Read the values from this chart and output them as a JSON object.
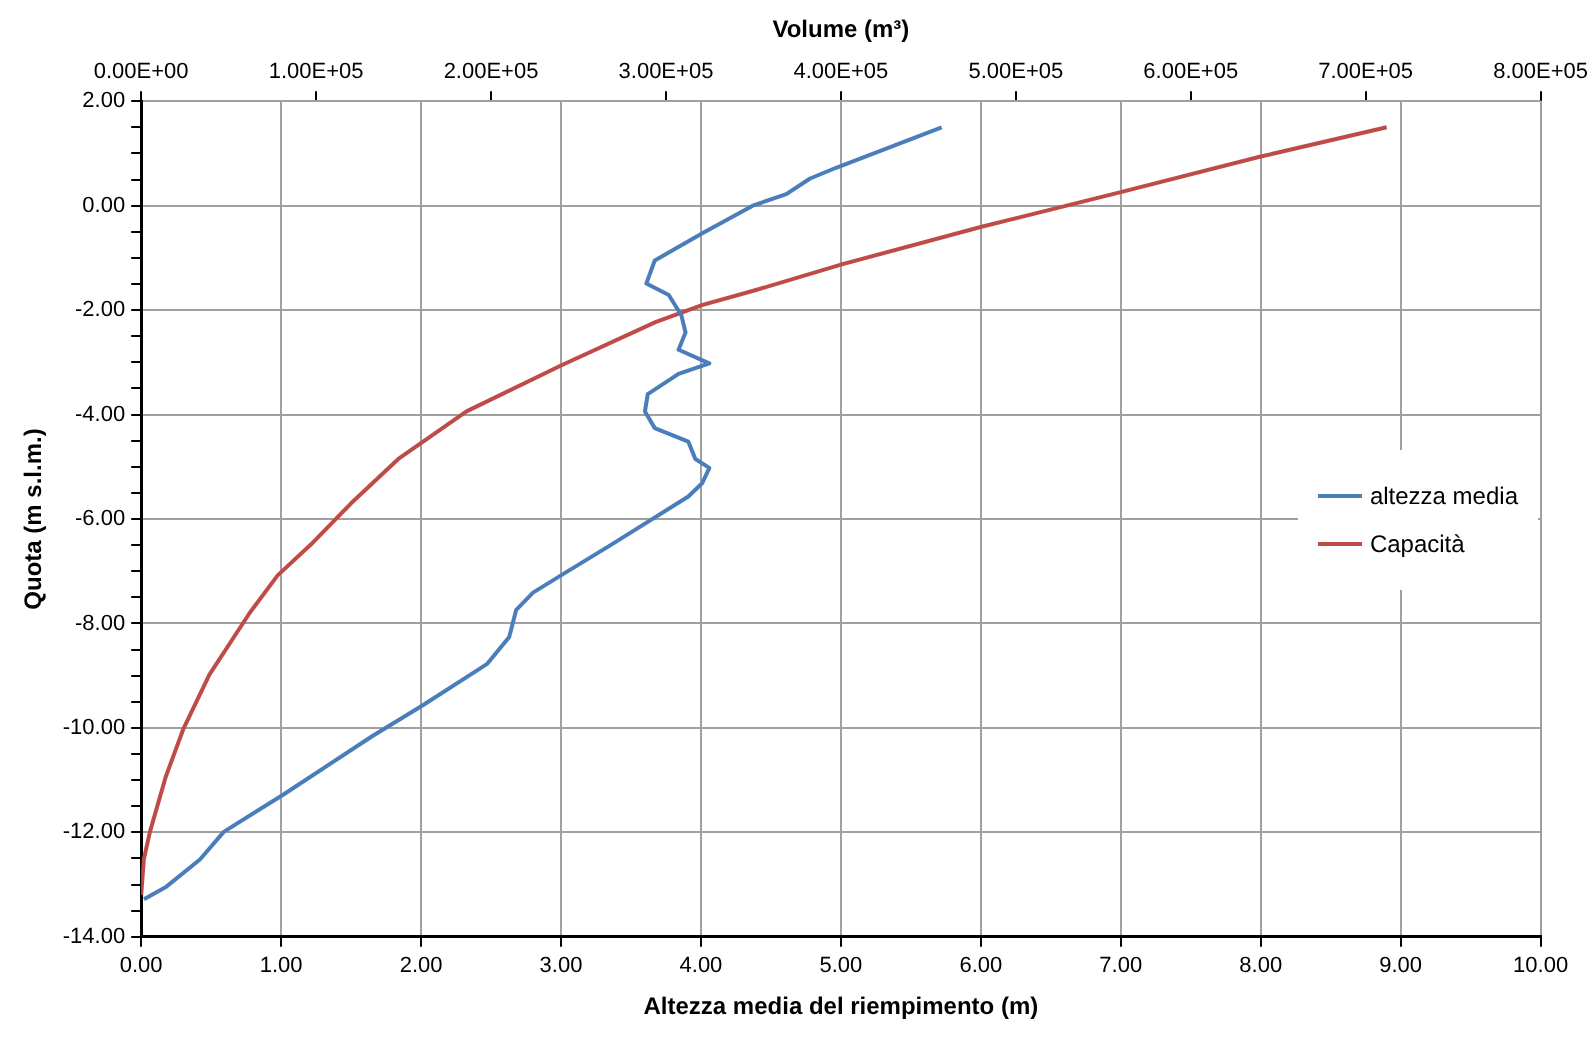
{
  "chart_data": {
    "type": "line",
    "xlabel": "Altezza media del riempimento (m)",
    "x2label": "Volume (m³)",
    "ylabel": "Quota (m s.l.m.)",
    "xlim": [
      0,
      10
    ],
    "xticks": [
      {
        "value": 0,
        "label": "0.00"
      },
      {
        "value": 1,
        "label": "1.00"
      },
      {
        "value": 2,
        "label": "2.00"
      },
      {
        "value": 3,
        "label": "3.00"
      },
      {
        "value": 4,
        "label": "4.00"
      },
      {
        "value": 5,
        "label": "5.00"
      },
      {
        "value": 6,
        "label": "6.00"
      },
      {
        "value": 7,
        "label": "7.00"
      },
      {
        "value": 8,
        "label": "8.00"
      },
      {
        "value": 9,
        "label": "9.00"
      },
      {
        "value": 10,
        "label": "10.00"
      }
    ],
    "x2lim": [
      0,
      800000
    ],
    "x2ticks": [
      {
        "value": 0,
        "label": "0.00E+00"
      },
      {
        "value": 100000,
        "label": "1.00E+05"
      },
      {
        "value": 200000,
        "label": "2.00E+05"
      },
      {
        "value": 300000,
        "label": "3.00E+05"
      },
      {
        "value": 400000,
        "label": "4.00E+05"
      },
      {
        "value": 500000,
        "label": "5.00E+05"
      },
      {
        "value": 600000,
        "label": "6.00E+05"
      },
      {
        "value": 700000,
        "label": "7.00E+05"
      },
      {
        "value": 800000,
        "label": "8.00E+05"
      }
    ],
    "ylim": [
      -14,
      2
    ],
    "yticks": [
      {
        "value": -14,
        "label": "-14.00"
      },
      {
        "value": -13.5,
        "label": null
      },
      {
        "value": -13,
        "label": null
      },
      {
        "value": -12.5,
        "label": null
      },
      {
        "value": -12,
        "label": "-12.00"
      },
      {
        "value": -11.5,
        "label": null
      },
      {
        "value": -11,
        "label": null
      },
      {
        "value": -10.5,
        "label": null
      },
      {
        "value": -10,
        "label": "-10.00"
      },
      {
        "value": -9.5,
        "label": null
      },
      {
        "value": -9,
        "label": null
      },
      {
        "value": -8.5,
        "label": null
      },
      {
        "value": -8,
        "label": "-8.00"
      },
      {
        "value": -7.5,
        "label": null
      },
      {
        "value": -7,
        "label": null
      },
      {
        "value": -6.5,
        "label": null
      },
      {
        "value": -6,
        "label": "-6.00"
      },
      {
        "value": -5.5,
        "label": null
      },
      {
        "value": -5,
        "label": null
      },
      {
        "value": -4.5,
        "label": null
      },
      {
        "value": -4,
        "label": "-4.00"
      },
      {
        "value": -3.5,
        "label": null
      },
      {
        "value": -3,
        "label": null
      },
      {
        "value": -2.5,
        "label": null
      },
      {
        "value": -2,
        "label": "-2.00"
      },
      {
        "value": -1.5,
        "label": null
      },
      {
        "value": -1,
        "label": null
      },
      {
        "value": -0.5,
        "label": null
      },
      {
        "value": 0,
        "label": "0.00"
      },
      {
        "value": 0.5,
        "label": null
      },
      {
        "value": 1,
        "label": null
      },
      {
        "value": 1.5,
        "label": null
      },
      {
        "value": 2,
        "label": "2.00"
      }
    ],
    "grid": true,
    "legend": "right",
    "marker": "none",
    "line_style": "solid",
    "series": [
      {
        "name": "altezza media",
        "color": "#4a7ebb",
        "x": [
          5.72,
          4.97,
          4.78,
          4.61,
          4.37,
          4.01,
          3.67,
          3.61,
          3.77,
          3.86,
          3.89,
          3.84,
          4.06,
          3.84,
          3.62,
          3.6,
          3.67,
          3.91,
          3.96,
          4.06,
          4.01,
          3.91,
          3.36,
          3.0,
          2.8,
          2.68,
          2.63,
          2.47,
          2.01,
          1.65,
          1.02,
          0.59,
          0.42,
          0.18,
          0.02
        ],
        "values": [
          1.5,
          0.73,
          0.52,
          0.22,
          0.0,
          -0.53,
          -1.05,
          -1.49,
          -1.71,
          -2.1,
          -2.43,
          -2.76,
          -3.02,
          -3.22,
          -3.61,
          -3.94,
          -4.26,
          -4.52,
          -4.85,
          -5.02,
          -5.31,
          -5.57,
          -6.49,
          -7.08,
          -7.41,
          -7.74,
          -8.26,
          -8.78,
          -9.57,
          -10.16,
          -11.27,
          -11.99,
          -12.52,
          -13.04,
          -13.28
        ]
      },
      {
        "name": "Capacità",
        "color": "#be4b48",
        "axis": "x2",
        "x": [
          712000,
          640000,
          560000,
          481000,
          401000,
          351000,
          321000,
          294000,
          240000,
          186000,
          147000,
          120000,
          97000,
          78000,
          62000,
          39000,
          24000,
          14000,
          5000,
          1500,
          0
        ],
        "values": [
          1.5,
          0.94,
          0.26,
          -0.4,
          -1.12,
          -1.62,
          -1.9,
          -2.23,
          -3.06,
          -3.94,
          -4.85,
          -5.7,
          -6.49,
          -7.08,
          -7.8,
          -8.98,
          -10.03,
          -10.94,
          -11.99,
          -12.52,
          -13.2
        ]
      }
    ]
  }
}
